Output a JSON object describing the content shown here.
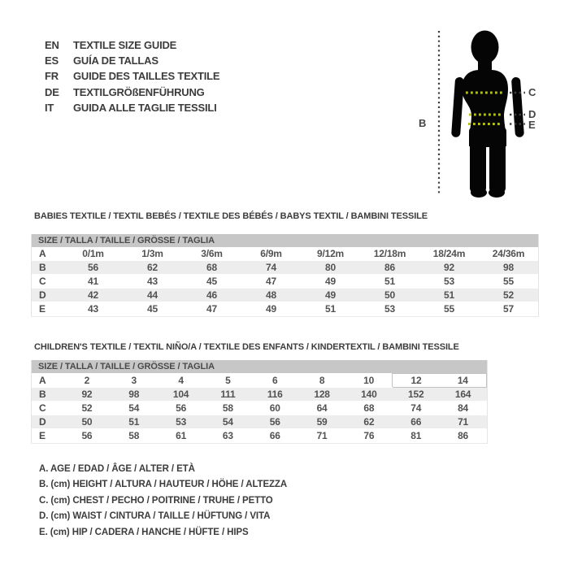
{
  "languages": {
    "items": [
      {
        "code": "EN",
        "title": "TEXTILE SIZE GUIDE"
      },
      {
        "code": "ES",
        "title": "GUÍA DE TALLAS"
      },
      {
        "code": "FR",
        "title": "GUIDE DES TAILLES TEXTILE"
      },
      {
        "code": "DE",
        "title": "TEXTILGRÖßENFÜHRUNG"
      },
      {
        "code": "IT",
        "title": "GUIDA ALLE TAGLIE TESSILI"
      }
    ]
  },
  "figure": {
    "labels": {
      "height": "B",
      "chest": "C",
      "waist": "D",
      "hip": "E"
    }
  },
  "babies": {
    "title": "BABIES TEXTILE / TEXTIL BEBÉS / TEXTILE DES BÉBÉS / BABYS TEXTIL / BAMBINI TESSILE",
    "size_header": "SIZE / TALLA / TAILLE / GRÖSSE / TAGLIA",
    "rows": [
      {
        "label": "A",
        "values": [
          "0/1m",
          "1/3m",
          "3/6m",
          "6/9m",
          "9/12m",
          "12/18m",
          "18/24m",
          "24/36m"
        ]
      },
      {
        "label": "B",
        "values": [
          "56",
          "62",
          "68",
          "74",
          "80",
          "86",
          "92",
          "98"
        ]
      },
      {
        "label": "C",
        "values": [
          "41",
          "43",
          "45",
          "47",
          "49",
          "51",
          "53",
          "55"
        ]
      },
      {
        "label": "D",
        "values": [
          "42",
          "44",
          "46",
          "48",
          "49",
          "50",
          "51",
          "52"
        ]
      },
      {
        "label": "E",
        "values": [
          "43",
          "45",
          "47",
          "49",
          "51",
          "53",
          "55",
          "57"
        ]
      }
    ]
  },
  "children": {
    "title": "CHILDREN'S TEXTILE / TEXTIL NIÑO/A / TEXTILE DES ENFANTS / KINDERTEXTIL / BAMBINI TESSILE",
    "size_header": "SIZE / TALLA / TAILLE / GRÖSSE / TAGLIA",
    "rows": [
      {
        "label": "A",
        "values": [
          "2",
          "3",
          "4",
          "5",
          "6",
          "8",
          "10",
          "12",
          "14"
        ]
      },
      {
        "label": "B",
        "values": [
          "92",
          "98",
          "104",
          "111",
          "116",
          "128",
          "140",
          "152",
          "164"
        ]
      },
      {
        "label": "C",
        "values": [
          "52",
          "54",
          "56",
          "58",
          "60",
          "64",
          "68",
          "74",
          "84"
        ]
      },
      {
        "label": "D",
        "values": [
          "50",
          "51",
          "53",
          "54",
          "56",
          "59",
          "62",
          "66",
          "71"
        ]
      },
      {
        "label": "E",
        "values": [
          "56",
          "58",
          "61",
          "63",
          "66",
          "71",
          "76",
          "81",
          "86"
        ]
      }
    ],
    "highlight": [
      [
        0,
        7
      ],
      [
        0,
        8
      ]
    ]
  },
  "legend": {
    "items": [
      "A. AGE / EDAD / ÂGE / ALTER / ETÀ",
      "B. (cm) HEIGHT / ALTURA / HAUTEUR / HÖHE / ALTEZZA",
      "C. (cm) CHEST / PECHO / POITRINE / TRUHE / PETTO",
      "D. (cm) WAIST / CINTURA / TAILLE / HÜFTUNG / VITA",
      "E. (cm) HIP / CADERA / HANCHE / HÜFTE / HIPS"
    ]
  },
  "colors": {
    "measure_line_green": "#b5c400",
    "measure_line_dark": "#3e3e3e",
    "header_bar_gray": "#c7c7c7",
    "alt_row_gray": "#ededed",
    "text_dark": "#3c3c3c"
  }
}
